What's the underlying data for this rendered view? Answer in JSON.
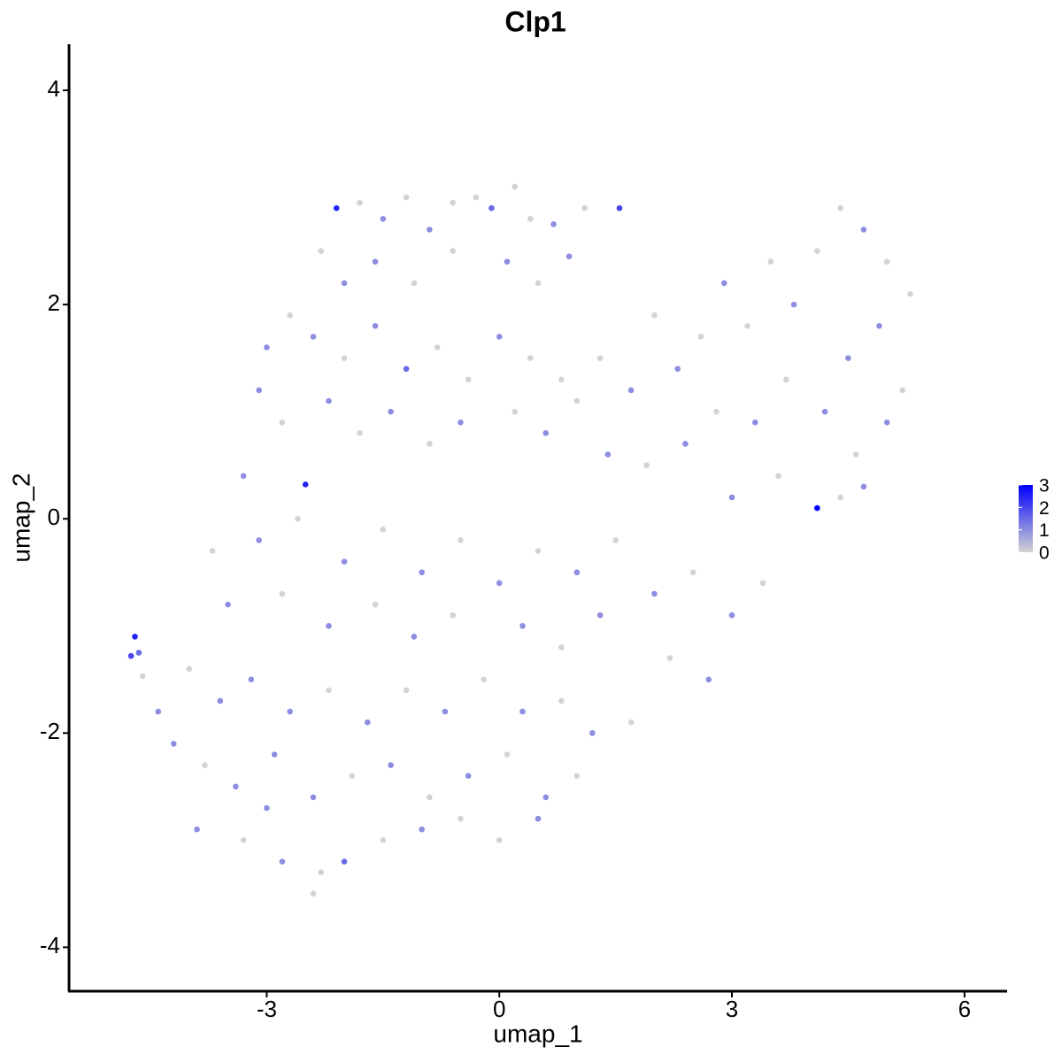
{
  "chart_data": {
    "type": "scatter",
    "title": "Clp1",
    "x_label": "umap_1",
    "y_label": "umap_2",
    "xlim": [
      -5.55,
      6.55
    ],
    "ylim": [
      -4.41,
      4.43
    ],
    "xticks": [
      -3,
      0,
      3,
      6
    ],
    "yticks": [
      -4,
      -2,
      0,
      2,
      4
    ],
    "low_color": "#d3d3d3",
    "high_color": "#0000ff",
    "colorlim": [
      0,
      3
    ],
    "colorbar_ticks": [
      0,
      1,
      2,
      3
    ],
    "legend": "right",
    "x": [
      -2.1,
      -1.8,
      -1.5,
      -1.2,
      -0.9,
      -0.6,
      -0.3,
      -0.1,
      0.2,
      0.4,
      0.7,
      1.1,
      -2.3,
      -2.0,
      -1.6,
      -1.1,
      -0.6,
      0.1,
      0.5,
      0.9,
      -3.0,
      -2.7,
      -2.4,
      -2.0,
      -1.6,
      -1.2,
      -0.8,
      -0.4,
      0,
      0.4,
      0.8,
      -3.1,
      -2.8,
      -2.2,
      -1.8,
      -1.4,
      -0.9,
      -0.5,
      0.2,
      0.6,
      1.0,
      1.3,
      1.7,
      2.0,
      2.3,
      2.6,
      2.9,
      3.2,
      3.5,
      3.8,
      4.1,
      4.4,
      4.7,
      5.0,
      5.3,
      4.5,
      4.9,
      5.2,
      4.2,
      3.7,
      3.3,
      2.8,
      2.4,
      1.9,
      1.4,
      4.6,
      5.0,
      3.6,
      3.0,
      4.4,
      4.1,
      4.7,
      -3.3,
      -3.7,
      -3.1,
      -2.6,
      -2.5,
      -2.0,
      -1.5,
      -1.0,
      -0.5,
      0,
      0.5,
      1.0,
      1.5,
      2.0,
      2.5,
      3.0,
      3.4,
      -3.5,
      -2.8,
      -2.2,
      -1.6,
      -1.1,
      -0.6,
      0.3,
      0.8,
      1.3,
      2.2,
      2.7,
      -4.0,
      -3.6,
      -3.2,
      -2.7,
      -2.2,
      -1.7,
      -1.2,
      -0.7,
      -0.2,
      0.3,
      0.8,
      1.2,
      1.7,
      -4.2,
      -3.8,
      -3.4,
      -2.9,
      -2.4,
      -1.9,
      -1.4,
      -0.9,
      -0.4,
      0.1,
      0.6,
      1.0,
      -3.9,
      -3.3,
      -2.8,
      -2.3,
      -2.0,
      -1.5,
      -1.0,
      -0.5,
      0.0,
      0.5,
      -2.4,
      -3.0,
      -4.7,
      -4.75,
      -4.65,
      -4.6,
      1.55,
      -4.4
    ],
    "y": [
      2.9,
      2.95,
      2.8,
      3.0,
      2.7,
      2.95,
      3.0,
      2.9,
      3.1,
      2.8,
      2.75,
      2.9,
      2.5,
      2.2,
      2.4,
      2.2,
      2.5,
      2.4,
      2.2,
      2.45,
      1.6,
      1.9,
      1.7,
      1.5,
      1.8,
      1.4,
      1.6,
      1.3,
      1.7,
      1.5,
      1.3,
      1.2,
      0.9,
      1.1,
      0.8,
      1.0,
      0.7,
      0.9,
      1.0,
      0.8,
      1.1,
      1.5,
      1.2,
      1.9,
      1.4,
      1.7,
      2.2,
      1.8,
      2.4,
      2.0,
      2.5,
      2.9,
      2.7,
      2.4,
      2.1,
      1.5,
      1.8,
      1.2,
      1.0,
      1.3,
      0.9,
      1.0,
      0.7,
      0.5,
      0.6,
      0.6,
      0.9,
      0.4,
      0.2,
      0.2,
      0.1,
      0.3,
      0.4,
      -0.3,
      -0.2,
      0.0,
      0.32,
      -0.4,
      -0.1,
      -0.5,
      -0.2,
      -0.6,
      -0.3,
      -0.5,
      -0.2,
      -0.7,
      -0.5,
      -0.9,
      -0.6,
      -0.8,
      -0.7,
      -1.0,
      -0.8,
      -1.1,
      -0.9,
      -1.0,
      -1.2,
      -0.9,
      -1.3,
      -1.5,
      -1.4,
      -1.7,
      -1.5,
      -1.8,
      -1.6,
      -1.9,
      -1.6,
      -1.8,
      -1.5,
      -1.8,
      -1.7,
      -2.0,
      -1.9,
      -2.1,
      -2.3,
      -2.5,
      -2.2,
      -2.6,
      -2.4,
      -2.3,
      -2.6,
      -2.4,
      -2.2,
      -2.6,
      -2.4,
      -2.9,
      -3.0,
      -3.2,
      -3.3,
      -3.2,
      -3.0,
      -2.9,
      -2.8,
      -3.0,
      -2.8,
      -3.5,
      -2.7,
      -1.1,
      -1.28,
      -1.25,
      -1.47,
      2.9,
      -1.8
    ],
    "values": [
      2.5,
      0,
      1,
      0,
      1,
      0,
      0,
      1.5,
      0,
      0,
      1,
      0,
      0,
      1,
      1,
      0,
      0,
      1,
      0,
      1,
      1,
      0,
      1,
      0,
      1,
      1.5,
      0,
      0,
      1,
      0,
      0,
      1,
      0,
      1,
      0,
      1,
      0,
      1,
      0,
      1,
      0,
      0,
      1,
      0,
      1,
      0,
      1,
      0,
      0,
      1,
      0,
      0,
      1,
      0,
      0,
      1,
      1,
      0,
      1,
      0,
      1,
      0,
      1,
      0,
      1,
      0,
      1,
      0,
      1,
      0,
      3,
      1,
      1,
      0,
      1,
      0,
      2.5,
      1,
      0,
      1,
      0,
      1,
      0,
      1,
      0,
      1,
      0,
      1,
      0,
      1,
      0,
      1,
      0,
      1,
      0,
      1,
      0,
      1,
      0,
      1,
      0,
      1,
      1,
      1,
      0,
      1,
      0,
      1,
      0,
      1,
      0,
      1,
      0,
      1,
      0,
      1,
      1,
      1,
      0,
      1,
      0,
      1,
      0,
      1,
      0,
      1,
      0,
      1,
      0,
      1.5,
      0,
      1,
      0,
      0,
      1,
      0,
      1,
      2.5,
      2,
      1.5,
      0,
      2,
      1
    ]
  }
}
